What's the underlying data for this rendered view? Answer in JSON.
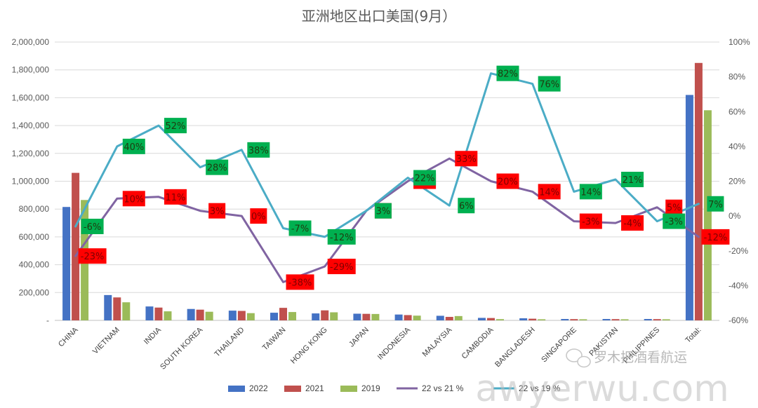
{
  "chart_data": {
    "type": "bar",
    "title": "亚洲地区出口美国(9月）",
    "categories": [
      "CHINA",
      "VIETNAM",
      "INDIA",
      "SOUTH KOREA",
      "THAILAND",
      "TAIWAN",
      "HONG KONG",
      "JAPAN",
      "INDONESIA",
      "MALAYSIA",
      "CAMBODIA",
      "BANGLADESH",
      "SINGAPORE",
      "PAKISTAN",
      "PHILIPPINES",
      "Total:"
    ],
    "ylim": [
      0,
      2000000
    ],
    "y_ticks": [
      "-",
      "200,000",
      "400,000",
      "600,000",
      "800,000",
      "1,000,000",
      "1,200,000",
      "1,400,000",
      "1,600,000",
      "1,800,000",
      "2,000,000"
    ],
    "y2lim": [
      -60,
      100
    ],
    "y2_ticks": [
      "-60%",
      "-40%",
      "-20%",
      "0%",
      "20%",
      "40%",
      "60%",
      "80%",
      "100%"
    ],
    "grid": true,
    "legend_position": "bottom",
    "series": [
      {
        "name": "2022",
        "axis": "left",
        "kind": "bar",
        "color": "#4472C4",
        "values": [
          815000,
          182000,
          100000,
          82000,
          70000,
          55000,
          50000,
          48000,
          42000,
          33000,
          18000,
          15000,
          10000,
          10000,
          10000,
          1620000
        ]
      },
      {
        "name": "2021",
        "axis": "left",
        "kind": "bar",
        "color": "#C0504D",
        "values": [
          1060000,
          165000,
          92000,
          77000,
          68000,
          90000,
          72000,
          47000,
          38000,
          25000,
          17000,
          12000,
          9000,
          9000,
          9000,
          1850000
        ]
      },
      {
        "name": "2019",
        "axis": "left",
        "kind": "bar",
        "color": "#9BBB59",
        "values": [
          865000,
          130000,
          65000,
          62000,
          52000,
          60000,
          58000,
          46000,
          34000,
          31000,
          9000,
          8000,
          8000,
          8000,
          8000,
          1510000
        ]
      },
      {
        "name": "22 vs 21 %",
        "axis": "right",
        "kind": "line",
        "color": "#8064A2",
        "values": [
          -23,
          10,
          11,
          3,
          0,
          -38,
          -29,
          3,
          20,
          33,
          20,
          14,
          -3,
          -4,
          5,
          -12
        ],
        "labels": [
          "-23%",
          "10%",
          "11%",
          "3%",
          "0%",
          "-38%",
          "-29%",
          "3%",
          "20%",
          "33%",
          "20%",
          "14%",
          "-3%",
          "-4%",
          "5%",
          "-12%"
        ]
      },
      {
        "name": "22 vs 19 %",
        "axis": "right",
        "kind": "line",
        "color": "#4BACC6",
        "values": [
          -6,
          40,
          52,
          28,
          38,
          -7,
          -12,
          3,
          22,
          6,
          82,
          76,
          14,
          21,
          -3,
          7
        ],
        "labels": [
          "-6%",
          "40%",
          "52%",
          "28%",
          "38%",
          "-7%",
          "-12%",
          "3%",
          "22%",
          "6%",
          "82%",
          "76%",
          "14%",
          "21%",
          "-3%",
          "7%"
        ]
      }
    ]
  },
  "watermark": {
    "brand": "罗木把酒看航运",
    "text": "awyerwu.com"
  }
}
